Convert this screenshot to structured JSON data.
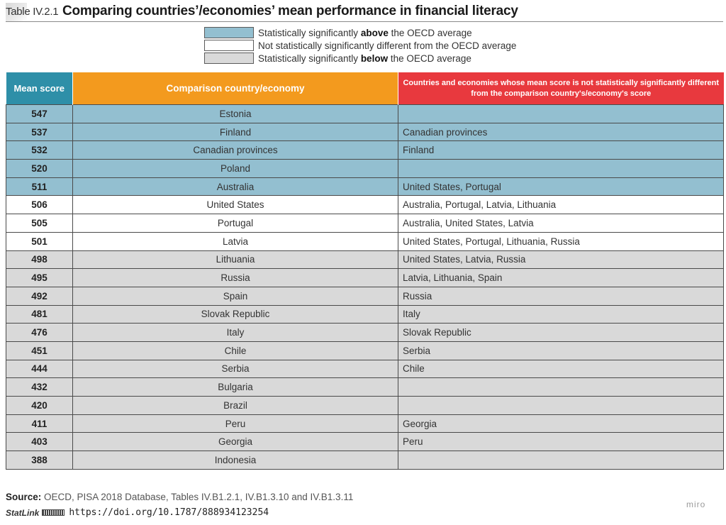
{
  "header": {
    "table_id": "Table IV.2.1",
    "title": "Comparing countries’/economies’ mean performance in financial literacy"
  },
  "legend": [
    {
      "pre": "Statistically significantly ",
      "bold": "above",
      "post": " the OECD average",
      "color": "#93bfd0"
    },
    {
      "pre": "Not statistically significantly different from the OECD average",
      "bold": "",
      "post": "",
      "color": "#ffffff"
    },
    {
      "pre": "Statistically significantly ",
      "bold": "below",
      "post": " the OECD average",
      "color": "#d9d9d9"
    }
  ],
  "table": {
    "headers": {
      "score": "Mean score",
      "country": "Comparison country/economy",
      "similar": "Countries and economies whose mean score is not statistically significantly different from the comparison country's/economy's score"
    },
    "colors": {
      "score_header": "#2e8fa8",
      "country_header": "#f39a1e",
      "similar_header": "#e8393e"
    },
    "rows": [
      {
        "score": "547",
        "country": "Estonia",
        "similar": "",
        "status": "above"
      },
      {
        "score": "537",
        "country": "Finland",
        "similar": "Canadian provinces",
        "status": "above"
      },
      {
        "score": "532",
        "country": "Canadian provinces",
        "similar": "Finland",
        "status": "above"
      },
      {
        "score": "520",
        "country": "Poland",
        "similar": "",
        "status": "above"
      },
      {
        "score": "511",
        "country": "Australia",
        "similar": "United States, Portugal",
        "status": "above"
      },
      {
        "score": "506",
        "country": "United States",
        "similar": "Australia, Portugal, Latvia, Lithuania",
        "status": "notsig"
      },
      {
        "score": "505",
        "country": "Portugal",
        "similar": "Australia, United States, Latvia",
        "status": "notsig"
      },
      {
        "score": "501",
        "country": "Latvia",
        "similar": "United States, Portugal, Lithuania, Russia",
        "status": "notsig"
      },
      {
        "score": "498",
        "country": "Lithuania",
        "similar": "United States, Latvia, Russia",
        "status": "below"
      },
      {
        "score": "495",
        "country": "Russia",
        "similar": "Latvia, Lithuania, Spain",
        "status": "below"
      },
      {
        "score": "492",
        "country": "Spain",
        "similar": "Russia",
        "status": "below"
      },
      {
        "score": "481",
        "country": "Slovak Republic",
        "similar": "Italy",
        "status": "below"
      },
      {
        "score": "476",
        "country": "Italy",
        "similar": "Slovak Republic",
        "status": "below"
      },
      {
        "score": "451",
        "country": "Chile",
        "similar": "Serbia",
        "status": "below"
      },
      {
        "score": "444",
        "country": "Serbia",
        "similar": "Chile",
        "status": "below"
      },
      {
        "score": "432",
        "country": "Bulgaria",
        "similar": "",
        "status": "below"
      },
      {
        "score": "420",
        "country": "Brazil",
        "similar": "",
        "status": "below"
      },
      {
        "score": "411",
        "country": "Peru",
        "similar": "Georgia",
        "status": "below"
      },
      {
        "score": "403",
        "country": "Georgia",
        "similar": "Peru",
        "status": "below"
      },
      {
        "score": "388",
        "country": "Indonesia",
        "similar": "",
        "status": "below"
      }
    ]
  },
  "footer": {
    "source_label": "Source:",
    "source_text": " OECD, PISA 2018 Database, Tables IV.B1.2.1, IV.B1.3.10 and IV.B1.3.11",
    "statlink_label": "StatLink",
    "statlink_url": "https://doi.org/10.1787/888934123254",
    "watermark": "miro"
  }
}
